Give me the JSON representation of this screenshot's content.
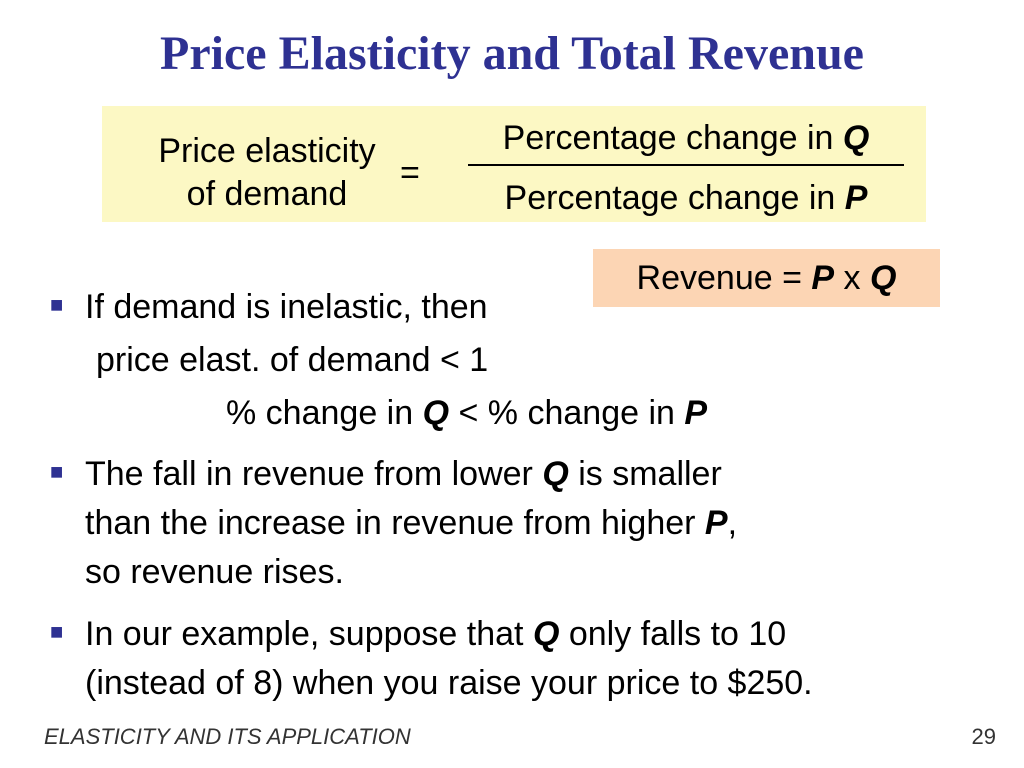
{
  "slide": {
    "title": "Price Elasticity and Total Revenue",
    "formula": {
      "lhs_line1": "Price elasticity",
      "lhs_line2": "of demand",
      "equals": "=",
      "numerator_text": "Percentage change in ",
      "numerator_var": "Q",
      "denominator_text": "Percentage change in ",
      "denominator_var": "P"
    },
    "revenue": {
      "prefix": "Revenue = ",
      "p": "P",
      "times": " x ",
      "q": "Q"
    },
    "bullet1": {
      "line1": "If demand is inelastic,  then",
      "line2": "price elast. of demand  <  1",
      "line3_a": "% change in ",
      "line3_q": "Q",
      "line3_b": "  <  % change in ",
      "line3_p": "P"
    },
    "bullet2": {
      "line1_a": "The fall in revenue from lower ",
      "line1_q": "Q",
      "line1_b": " is smaller",
      "line2_a": "than the increase in revenue from higher ",
      "line2_p": "P",
      "line2_b": ",",
      "line3": "so revenue rises."
    },
    "bullet3": {
      "line1_a": "In our example, suppose that ",
      "line1_q": "Q",
      "line1_b": " only falls to 10",
      "line2": "(instead of 8) when you raise your price to $250."
    },
    "bullet_symbol": "■",
    "footer_left": "ELASTICITY AND ITS APPLICATION",
    "page_number": "29",
    "colors": {
      "title": "#2e3192",
      "formula_box": "#fcf8c4",
      "revenue_box": "#fcd5b4"
    }
  }
}
